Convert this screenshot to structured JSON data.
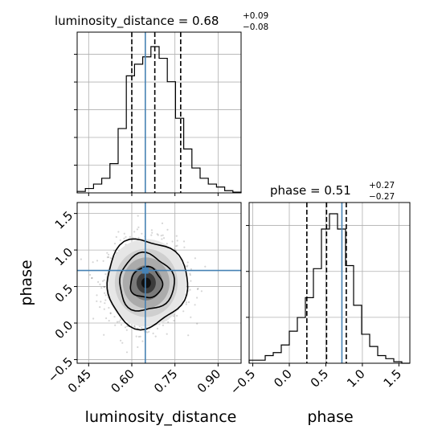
{
  "chart_data": {
    "type": "corner",
    "grid": true,
    "truth_color": "#4682b4",
    "line_color": "#000000",
    "params": [
      {
        "name": "luminosity_distance",
        "truth": 0.647,
        "quantiles": [
          0.6,
          0.68,
          0.77
        ],
        "title_main": "luminosity_distance = 0.68",
        "title_sup": "+0.09",
        "title_sub": "−0.08",
        "range": [
          0.41,
          0.98
        ],
        "ticks": [
          {
            "v": 0.45,
            "label": "0.45"
          },
          {
            "v": 0.6,
            "label": "0.60"
          },
          {
            "v": 0.75,
            "label": "0.75"
          },
          {
            "v": 0.9,
            "label": "0.90"
          }
        ],
        "hist_bins": [
          0.41,
          0.4385,
          0.467,
          0.4955,
          0.524,
          0.5525,
          0.581,
          0.6095,
          0.638,
          0.6665,
          0.695,
          0.7235,
          0.752,
          0.7805,
          0.809,
          0.8375,
          0.866,
          0.8945,
          0.923,
          0.9515,
          0.98
        ],
        "hist_counts": [
          0.01,
          0.03,
          0.06,
          0.1,
          0.2,
          0.44,
          0.8,
          0.88,
          0.93,
          1.0,
          0.92,
          0.76,
          0.51,
          0.3,
          0.17,
          0.1,
          0.06,
          0.04,
          0.015,
          0.005
        ]
      },
      {
        "name": "phase",
        "truth": 0.72,
        "quantiles": [
          0.24,
          0.51,
          0.78
        ],
        "title_main": "phase = 0.51",
        "title_sup": "+0.27",
        "title_sub": "−0.27",
        "range": [
          -0.55,
          1.65
        ],
        "ticks": [
          {
            "v": -0.5,
            "label": "−0.5"
          },
          {
            "v": 0.0,
            "label": "0.0"
          },
          {
            "v": 0.5,
            "label": "0.5"
          },
          {
            "v": 1.0,
            "label": "1.0"
          },
          {
            "v": 1.5,
            "label": "1.5"
          }
        ],
        "hist_bins": [
          -0.55,
          -0.44,
          -0.33,
          -0.22,
          -0.11,
          0.0,
          0.11,
          0.22,
          0.33,
          0.44,
          0.55,
          0.66,
          0.77,
          0.88,
          0.99,
          1.1,
          1.21,
          1.32,
          1.43,
          1.54,
          1.65
        ],
        "hist_counts": [
          0.02,
          0.02,
          0.05,
          0.07,
          0.12,
          0.21,
          0.3,
          0.43,
          0.62,
          0.88,
          0.98,
          0.88,
          0.64,
          0.38,
          0.19,
          0.11,
          0.05,
          0.03,
          0.01,
          0.0
        ]
      }
    ],
    "joint": {
      "center": [
        0.65,
        0.55
      ],
      "sd": [
        0.065,
        0.28
      ],
      "contour_levels": [
        {
          "dx": 0.055,
          "dy": 0.21
        },
        {
          "dx": 0.095,
          "dy": 0.39
        },
        {
          "dx": 0.14,
          "dy": 0.6
        }
      ]
    }
  }
}
